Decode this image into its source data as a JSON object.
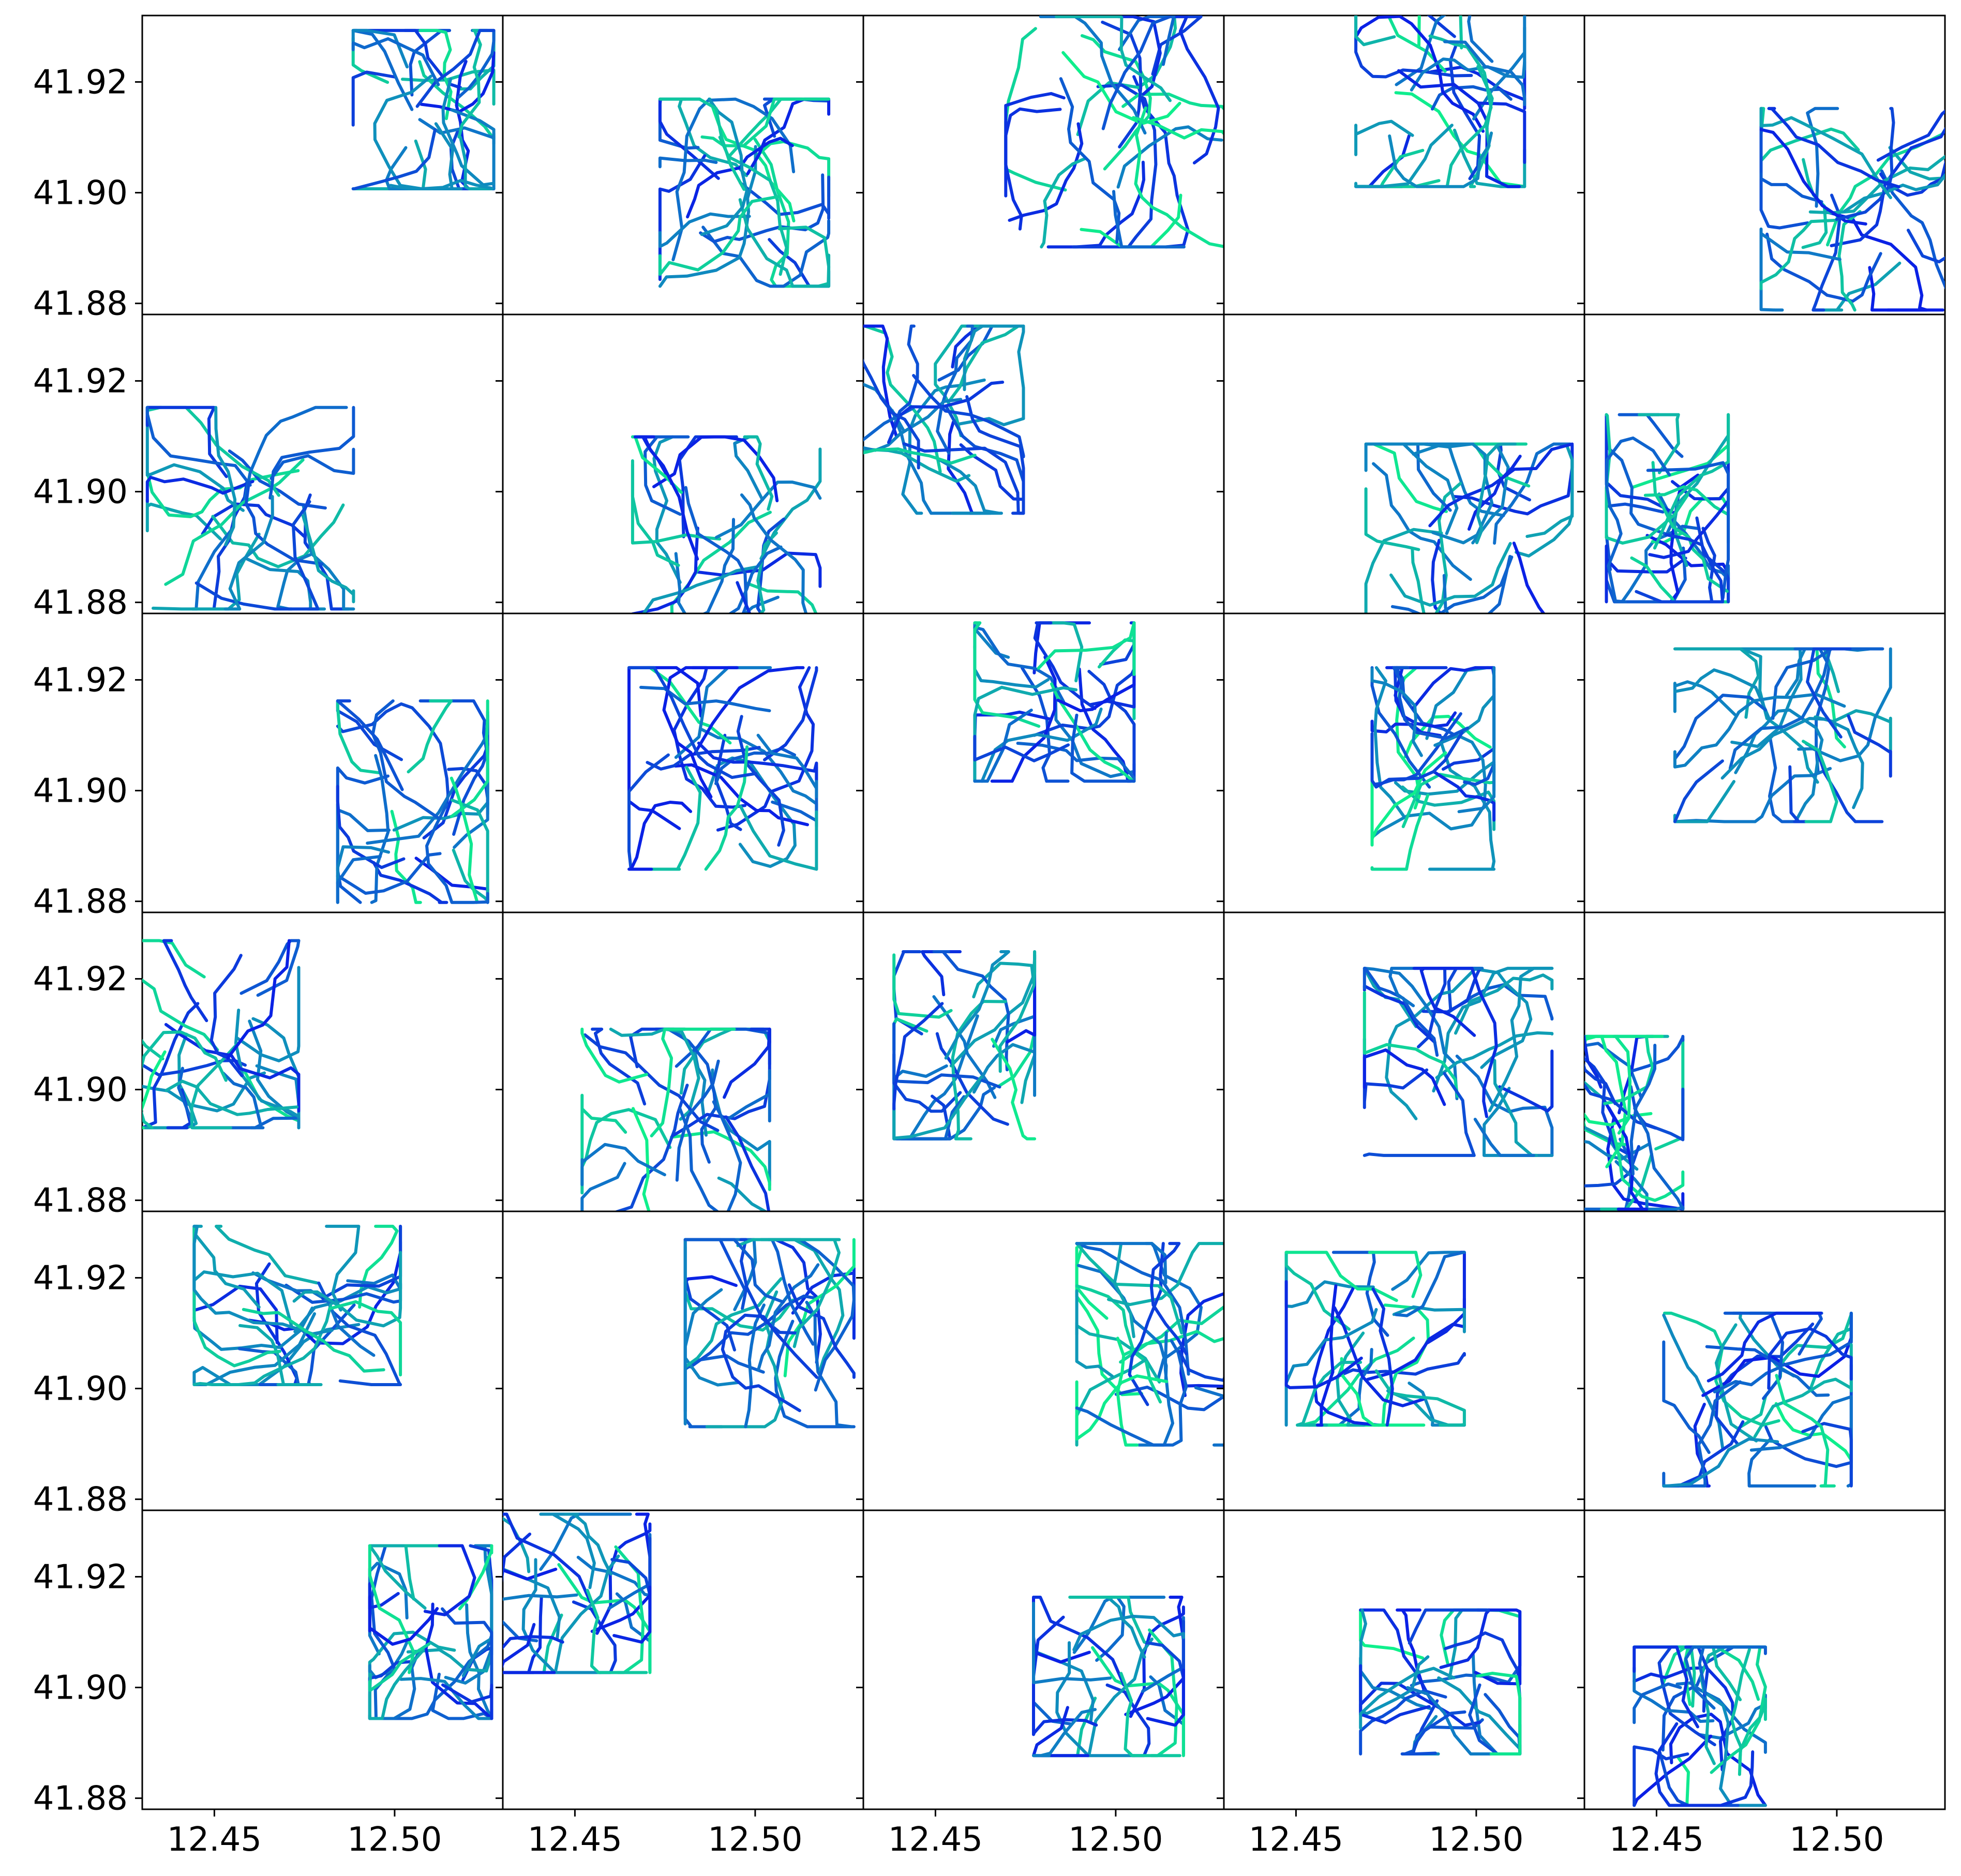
{
  "colors": {
    "seg_start": "#0a1fe6",
    "seg_mid": "#0f77c8",
    "seg_end": "#0ff08c",
    "axis": "#000000",
    "background": "#ffffff"
  },
  "chart_data": {
    "type": "line",
    "layout": "6 rows x 5 columns grid of small-multiple panels with shared axes",
    "series_description": "each panel shows many GPS trajectories in a blue-to-green colormap",
    "xlim": [
      12.43,
      12.53
    ],
    "ylim": [
      41.878,
      41.932
    ],
    "x_ticks": [
      12.45,
      12.5
    ],
    "x_tick_labels": [
      "12.45",
      "12.50"
    ],
    "y_ticks": [
      41.88,
      41.9,
      41.92
    ],
    "y_tick_labels": [
      "41.88",
      "41.90",
      "41.92"
    ],
    "grid": false,
    "legend": "none",
    "panels": [
      {
        "center": [
          12.508,
          41.915
        ],
        "spread": [
          0.015,
          0.011
        ],
        "seed": 11
      },
      {
        "center": [
          12.497,
          41.9
        ],
        "spread": [
          0.018,
          0.013
        ],
        "seed": 12
      },
      {
        "center": [
          12.502,
          41.911
        ],
        "spread": [
          0.025,
          0.016
        ],
        "seed": 13
      },
      {
        "center": [
          12.49,
          41.918
        ],
        "spread": [
          0.018,
          0.013
        ],
        "seed": 14
      },
      {
        "center": [
          12.505,
          41.897
        ],
        "spread": [
          0.02,
          0.014
        ],
        "seed": 15
      },
      {
        "center": [
          12.46,
          41.897
        ],
        "spread": [
          0.022,
          0.014
        ],
        "seed": 21
      },
      {
        "center": [
          12.492,
          41.893
        ],
        "spread": [
          0.02,
          0.013
        ],
        "seed": 22
      },
      {
        "center": [
          12.451,
          41.913
        ],
        "spread": [
          0.018,
          0.013
        ],
        "seed": 23
      },
      {
        "center": [
          12.498,
          41.893
        ],
        "spread": [
          0.022,
          0.012
        ],
        "seed": 24
      },
      {
        "center": [
          12.453,
          41.897
        ],
        "spread": [
          0.013,
          0.013
        ],
        "seed": 25
      },
      {
        "center": [
          12.505,
          41.898
        ],
        "spread": [
          0.016,
          0.014
        ],
        "seed": 31
      },
      {
        "center": [
          12.491,
          41.904
        ],
        "spread": [
          0.02,
          0.014
        ],
        "seed": 32
      },
      {
        "center": [
          12.483,
          41.916
        ],
        "spread": [
          0.017,
          0.011
        ],
        "seed": 33
      },
      {
        "center": [
          12.488,
          41.904
        ],
        "spread": [
          0.013,
          0.014
        ],
        "seed": 34
      },
      {
        "center": [
          12.485,
          41.91
        ],
        "spread": [
          0.023,
          0.012
        ],
        "seed": 35
      },
      {
        "center": [
          12.45,
          41.91
        ],
        "spread": [
          0.018,
          0.013
        ],
        "seed": 41
      },
      {
        "center": [
          12.478,
          41.894
        ],
        "spread": [
          0.02,
          0.013
        ],
        "seed": 42
      },
      {
        "center": [
          12.458,
          41.908
        ],
        "spread": [
          0.015,
          0.013
        ],
        "seed": 43
      },
      {
        "center": [
          12.495,
          41.905
        ],
        "spread": [
          0.02,
          0.013
        ],
        "seed": 44
      },
      {
        "center": [
          12.443,
          41.894
        ],
        "spread": [
          0.011,
          0.012
        ],
        "seed": 45
      },
      {
        "center": [
          12.473,
          41.915
        ],
        "spread": [
          0.022,
          0.011
        ],
        "seed": 51
      },
      {
        "center": [
          12.504,
          41.91
        ],
        "spread": [
          0.018,
          0.013
        ],
        "seed": 52
      },
      {
        "center": [
          12.51,
          41.908
        ],
        "spread": [
          0.016,
          0.014
        ],
        "seed": 53
      },
      {
        "center": [
          12.472,
          41.909
        ],
        "spread": [
          0.019,
          0.012
        ],
        "seed": 54
      },
      {
        "center": [
          12.478,
          41.898
        ],
        "spread": [
          0.02,
          0.012
        ],
        "seed": 55
      },
      {
        "center": [
          12.51,
          41.91
        ],
        "spread": [
          0.013,
          0.012
        ],
        "seed": 61
      },
      {
        "center": [
          12.45,
          41.917
        ],
        "spread": [
          0.016,
          0.011
        ],
        "seed": 62
      },
      {
        "center": [
          12.498,
          41.902
        ],
        "spread": [
          0.016,
          0.011
        ],
        "seed": 63
      },
      {
        "center": [
          12.49,
          41.901
        ],
        "spread": [
          0.017,
          0.01
        ],
        "seed": 64
      },
      {
        "center": [
          12.462,
          41.893
        ],
        "spread": [
          0.014,
          0.011
        ],
        "seed": 65
      }
    ]
  }
}
